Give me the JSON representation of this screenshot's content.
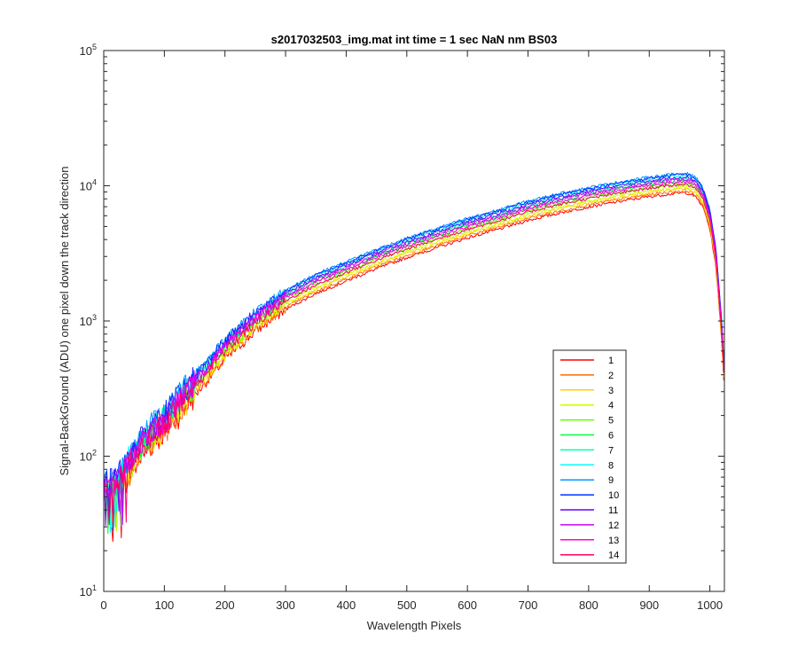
{
  "chart_data": {
    "type": "line",
    "title": "s2017032503_img.mat int time = 1 sec  NaN nm BS03",
    "xlabel": "Wavelength Pixels",
    "ylabel": "Signal-BackGround (ADU) one pixel down the track direction",
    "xlim": [
      0,
      1024
    ],
    "ylim": [
      10,
      100000
    ],
    "yscale": "log",
    "x_ticks": [
      0,
      100,
      200,
      300,
      400,
      500,
      600,
      700,
      800,
      900,
      1000
    ],
    "y_ticks": [
      {
        "value": 10,
        "base": "10",
        "exp": "1"
      },
      {
        "value": 100,
        "base": "10",
        "exp": "2"
      },
      {
        "value": 1000,
        "base": "10",
        "exp": "3"
      },
      {
        "value": 10000,
        "base": "10",
        "exp": "4"
      },
      {
        "value": 100000,
        "base": "10",
        "exp": "5"
      }
    ],
    "grid": false,
    "legend_position": "lower-right",
    "base_curve": {
      "x": [
        0,
        20,
        40,
        60,
        80,
        100,
        130,
        160,
        200,
        250,
        300,
        350,
        400,
        450,
        500,
        550,
        600,
        650,
        700,
        750,
        800,
        850,
        900,
        930,
        950,
        960,
        970,
        980,
        990,
        1000,
        1010,
        1020,
        1024
      ],
      "y": [
        55,
        60,
        85,
        115,
        150,
        180,
        265,
        380,
        620,
        1000,
        1450,
        1900,
        2350,
        2900,
        3500,
        4150,
        4900,
        5650,
        6600,
        7450,
        8300,
        9100,
        9900,
        10300,
        10500,
        10600,
        10300,
        9500,
        8000,
        5700,
        3000,
        800,
        350
      ]
    },
    "series": [
      {
        "name": "1",
        "color": "#ff0000",
        "scale": 0.84
      },
      {
        "name": "2",
        "color": "#ff6a00",
        "scale": 0.87
      },
      {
        "name": "3",
        "color": "#ffd200",
        "scale": 0.9
      },
      {
        "name": "4",
        "color": "#c8ff00",
        "scale": 0.93
      },
      {
        "name": "5",
        "color": "#66ff00",
        "scale": 0.98
      },
      {
        "name": "6",
        "color": "#00ff40",
        "scale": 1.03
      },
      {
        "name": "7",
        "color": "#00ffaa",
        "scale": 1.08
      },
      {
        "name": "8",
        "color": "#00ffff",
        "scale": 1.13
      },
      {
        "name": "9",
        "color": "#0099ff",
        "scale": 1.17
      },
      {
        "name": "10",
        "color": "#0033ff",
        "scale": 1.15
      },
      {
        "name": "11",
        "color": "#6a00ff",
        "scale": 1.1
      },
      {
        "name": "12",
        "color": "#cc00ff",
        "scale": 1.06
      },
      {
        "name": "13",
        "color": "#ff00d4",
        "scale": 1.02
      },
      {
        "name": "14",
        "color": "#ff0060",
        "scale": 0.97
      }
    ]
  }
}
